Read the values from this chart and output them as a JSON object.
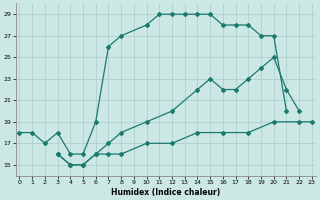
{
  "line1": {
    "x": [
      0,
      1,
      2,
      3,
      4,
      5,
      6,
      7,
      8,
      10,
      11,
      12,
      13,
      14,
      15,
      16,
      17,
      18,
      19,
      20,
      21
    ],
    "y": [
      18,
      18,
      17,
      18,
      16,
      16,
      19,
      26,
      27,
      28,
      29,
      29,
      29,
      29,
      29,
      28,
      28,
      28,
      27,
      27,
      20
    ]
  },
  "line2": {
    "x": [
      3,
      4,
      5,
      6,
      7,
      8,
      10,
      12,
      14,
      15,
      16,
      17,
      18,
      19,
      20,
      21,
      22
    ],
    "y": [
      16,
      15,
      15,
      16,
      17,
      18,
      19,
      20,
      22,
      23,
      22,
      22,
      23,
      24,
      25,
      22,
      20
    ]
  },
  "line3": {
    "x": [
      3,
      4,
      5,
      6,
      7,
      8,
      10,
      12,
      14,
      16,
      18,
      20,
      22,
      23
    ],
    "y": [
      16,
      15,
      15,
      16,
      16,
      16,
      17,
      17,
      18,
      18,
      18,
      19,
      19,
      19
    ]
  },
  "xlabel": "Humidex (Indice chaleur)",
  "xlim": [
    -0.3,
    23.3
  ],
  "ylim": [
    14.0,
    30.0
  ],
  "yticks": [
    15,
    17,
    19,
    21,
    23,
    25,
    27,
    29
  ],
  "xticks": [
    0,
    1,
    2,
    3,
    4,
    5,
    6,
    7,
    8,
    9,
    10,
    11,
    12,
    13,
    14,
    15,
    16,
    17,
    18,
    19,
    20,
    21,
    22,
    23
  ],
  "bg_color": "#cce8e4",
  "grid_color": "#aaccca",
  "line_color": "#1a7a6e",
  "spine_color": "#888888"
}
